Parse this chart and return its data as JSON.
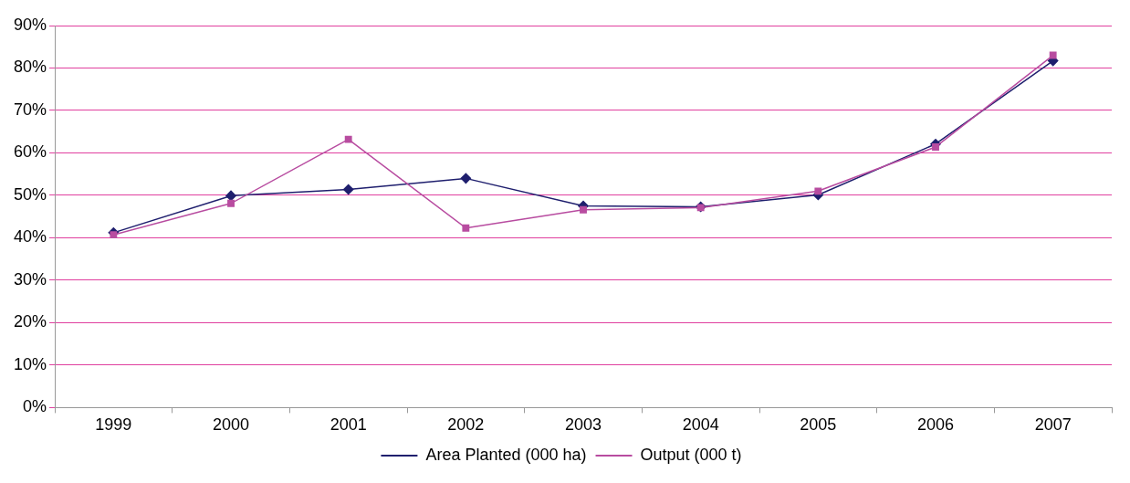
{
  "chart_data": {
    "type": "line",
    "categories": [
      "1999",
      "2000",
      "2001",
      "2002",
      "2003",
      "2004",
      "2005",
      "2006",
      "2007"
    ],
    "series": [
      {
        "name": "Area Planted (000 ha)",
        "color": "#1f1f6e",
        "marker": "diamond",
        "values": [
          41.2,
          49.9,
          51.4,
          54.0,
          47.5,
          47.3,
          50.1,
          62.1,
          81.7
        ]
      },
      {
        "name": "Output (000 t)",
        "color": "#b84ca0",
        "marker": "square",
        "values": [
          40.7,
          48.1,
          63.2,
          42.3,
          46.6,
          47.1,
          51.0,
          61.4,
          83.0
        ]
      }
    ],
    "ylim": [
      0,
      90
    ],
    "yticks": [
      {
        "value": 0,
        "label": "0%"
      },
      {
        "value": 10,
        "label": "10%"
      },
      {
        "value": 20,
        "label": "20%"
      },
      {
        "value": 30,
        "label": "30%"
      },
      {
        "value": 40,
        "label": "40%"
      },
      {
        "value": 50,
        "label": "50%"
      },
      {
        "value": 60,
        "label": "60%"
      },
      {
        "value": 70,
        "label": "70%"
      },
      {
        "value": 80,
        "label": "80%"
      },
      {
        "value": 90,
        "label": "90%"
      }
    ],
    "grid": "y",
    "legend": "bottom",
    "line_style": "solid"
  }
}
